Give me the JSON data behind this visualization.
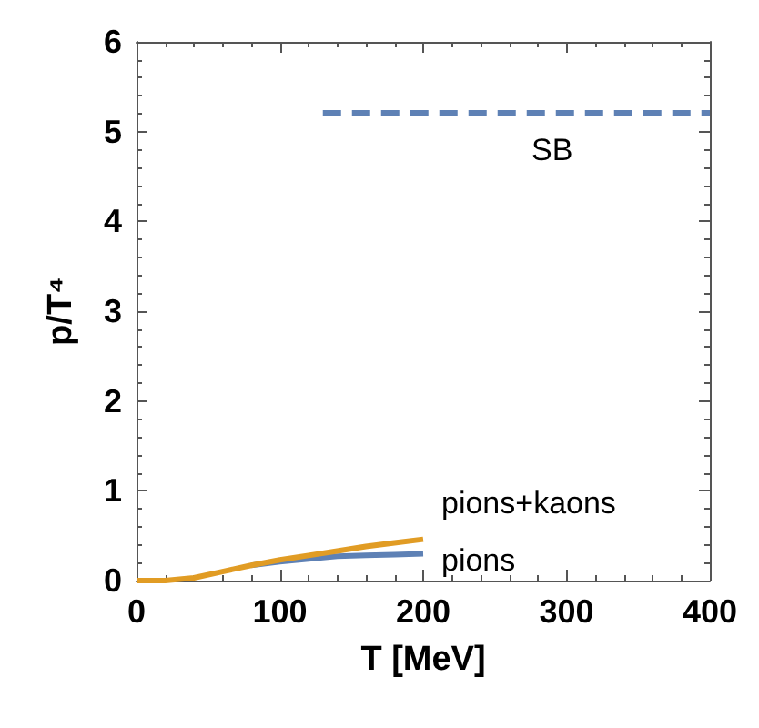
{
  "chart_data": {
    "type": "line",
    "xlabel": "T [MeV]",
    "ylabel": "p/T⁴",
    "xlim": [
      0,
      400
    ],
    "xticks": [
      0,
      100,
      200,
      300,
      400
    ],
    "ylim": [
      0,
      6
    ],
    "yticks": [
      0,
      1,
      2,
      3,
      4,
      5,
      6
    ],
    "grid": false,
    "legend": false,
    "marker": "none",
    "series": [
      {
        "name": "SB",
        "color": "#5e81b5",
        "line_style": "dashed",
        "x": [
          130,
          400
        ],
        "values": [
          5.21,
          5.21
        ]
      },
      {
        "name": "pions",
        "color": "#5e81b5",
        "line_style": "solid",
        "x": [
          80,
          100,
          120,
          140,
          160,
          180,
          200
        ],
        "values": [
          0.17,
          0.21,
          0.24,
          0.27,
          0.28,
          0.29,
          0.3
        ]
      },
      {
        "name": "pions+kaons",
        "color": "#e19c24",
        "line_style": "solid",
        "x": [
          0,
          20,
          40,
          60,
          80,
          100,
          120,
          140,
          160,
          180,
          200
        ],
        "values": [
          0,
          0,
          0.03,
          0.1,
          0.17,
          0.23,
          0.28,
          0.33,
          0.38,
          0.42,
          0.46
        ]
      }
    ]
  }
}
